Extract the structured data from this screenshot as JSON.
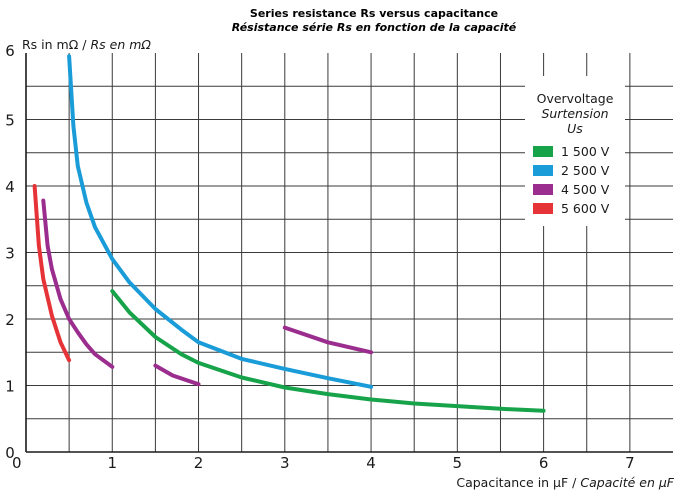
{
  "chart_data": {
    "type": "line",
    "title": "Series resistance Rs versus capacitance",
    "subtitle": "Résistance série Rs en fonction de la capacité",
    "ylabel_main": "Rs in mΩ",
    "ylabel_alt": "Rs en mΩ",
    "xlabel_main": "Capacitance in µF",
    "xlabel_alt": "Capacité en µF",
    "xlim": [
      0,
      7.5
    ],
    "ylim": [
      0,
      6
    ],
    "x_ticks": [
      "0",
      "1",
      "2",
      "3",
      "4",
      "5",
      "6",
      "7"
    ],
    "y_ticks": [
      "0",
      "1",
      "2",
      "3",
      "4",
      "5",
      "6"
    ],
    "grid": true,
    "legend": {
      "placement": "top-right",
      "title_lines": [
        "Overvoltage",
        "Surtension",
        "Us"
      ]
    },
    "series": [
      {
        "name": "1 500 V",
        "color": "#17a34a",
        "segments": [
          [
            [
              1.0,
              2.42
            ],
            [
              1.2,
              2.1
            ],
            [
              1.5,
              1.73
            ],
            [
              1.8,
              1.47
            ],
            [
              2.0,
              1.34
            ],
            [
              2.5,
              1.12
            ],
            [
              3.0,
              0.97
            ],
            [
              3.5,
              0.87
            ],
            [
              4.0,
              0.79
            ],
            [
              4.5,
              0.73
            ],
            [
              5.0,
              0.69
            ],
            [
              5.5,
              0.65
            ],
            [
              6.0,
              0.62
            ]
          ]
        ]
      },
      {
        "name": "2 500 V",
        "color": "#1a9cd8",
        "segments": [
          [
            [
              0.5,
              5.95
            ],
            [
              0.55,
              4.9
            ],
            [
              0.6,
              4.3
            ],
            [
              0.7,
              3.75
            ],
            [
              0.8,
              3.38
            ],
            [
              1.0,
              2.9
            ],
            [
              1.2,
              2.55
            ],
            [
              1.5,
              2.15
            ],
            [
              1.8,
              1.84
            ],
            [
              2.0,
              1.65
            ],
            [
              2.5,
              1.4
            ],
            [
              3.0,
              1.25
            ],
            [
              3.5,
              1.11
            ],
            [
              4.0,
              0.98
            ]
          ]
        ]
      },
      {
        "name": "4 500 V",
        "color": "#9b2d8e",
        "segments": [
          [
            [
              0.2,
              3.78
            ],
            [
              0.25,
              3.1
            ],
            [
              0.3,
              2.75
            ],
            [
              0.4,
              2.3
            ],
            [
              0.5,
              2.0
            ],
            [
              0.6,
              1.8
            ],
            [
              0.7,
              1.62
            ],
            [
              0.8,
              1.47
            ],
            [
              1.0,
              1.28
            ]
          ],
          [
            [
              1.5,
              1.3
            ],
            [
              1.7,
              1.15
            ],
            [
              2.0,
              1.02
            ]
          ],
          [
            [
              3.0,
              1.87
            ],
            [
              3.5,
              1.65
            ],
            [
              4.0,
              1.5
            ]
          ]
        ]
      },
      {
        "name": "5 600 V",
        "color": "#e63338",
        "segments": [
          [
            [
              0.1,
              4.0
            ],
            [
              0.15,
              3.1
            ],
            [
              0.2,
              2.6
            ],
            [
              0.3,
              2.05
            ],
            [
              0.4,
              1.65
            ],
            [
              0.5,
              1.38
            ]
          ]
        ]
      }
    ]
  }
}
